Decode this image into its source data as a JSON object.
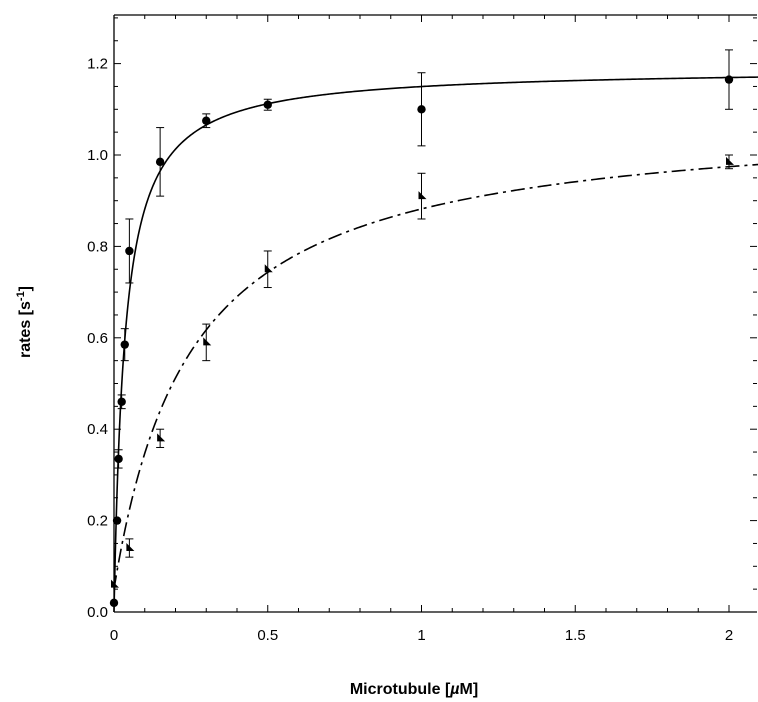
{
  "chart_data": {
    "type": "scatter",
    "title": "",
    "xlabel": "Microtubule [µM]",
    "ylabel": "rates [s-1]",
    "ylabel_main": "rates [s",
    "ylabel_sup": "-1",
    "ylabel_end": "]",
    "xlabel_main": "Microtubule [",
    "xlabel_mu": "µ",
    "xlabel_end": "M]",
    "xlim": [
      0,
      2.1
    ],
    "ylim": [
      0,
      1.3
    ],
    "grid": false,
    "legend": "none",
    "x_ticks": [
      0,
      0.5,
      1,
      1.5,
      2
    ],
    "x_tick_labels": [
      "0",
      "0.5",
      "1",
      "1.5",
      "2"
    ],
    "y_ticks": [
      0,
      0.2,
      0.4,
      0.6,
      0.8,
      1.0,
      1.2
    ],
    "y_tick_labels": [
      "0.0",
      "0.2",
      "0.4",
      "0.6",
      "0.8",
      "1.0",
      "1.2"
    ],
    "series": [
      {
        "marker": "circle",
        "line_style": "solid",
        "color": "#000000",
        "x": [
          0,
          0.01,
          0.015,
          0.025,
          0.035,
          0.05,
          0.15,
          0.3,
          0.5,
          1.0,
          2.0
        ],
        "y": [
          0.02,
          0.2,
          0.335,
          0.46,
          0.585,
          0.79,
          0.985,
          1.075,
          1.11,
          1.1,
          1.165
        ],
        "err": [
          0.0,
          0.0,
          0.02,
          0.015,
          0.035,
          0.07,
          0.075,
          0.015,
          0.012,
          0.08,
          0.065
        ],
        "fit": {
          "model": "hyperbolic",
          "vmax": 1.19,
          "k": 0.035,
          "offset": 0.0
        }
      },
      {
        "marker": "triangle",
        "line_style": "dash-dot",
        "color": "#000000",
        "x": [
          0,
          0.05,
          0.15,
          0.3,
          0.5,
          1.0,
          2.0
        ],
        "y": [
          0.06,
          0.14,
          0.38,
          0.59,
          0.75,
          0.91,
          0.985
        ],
        "err": [
          0.0,
          0.02,
          0.02,
          0.04,
          0.04,
          0.05,
          0.015
        ],
        "fit": {
          "model": "hyperbolic",
          "vmax": 1.09,
          "k": 0.25,
          "offset": 0.05
        }
      }
    ]
  }
}
